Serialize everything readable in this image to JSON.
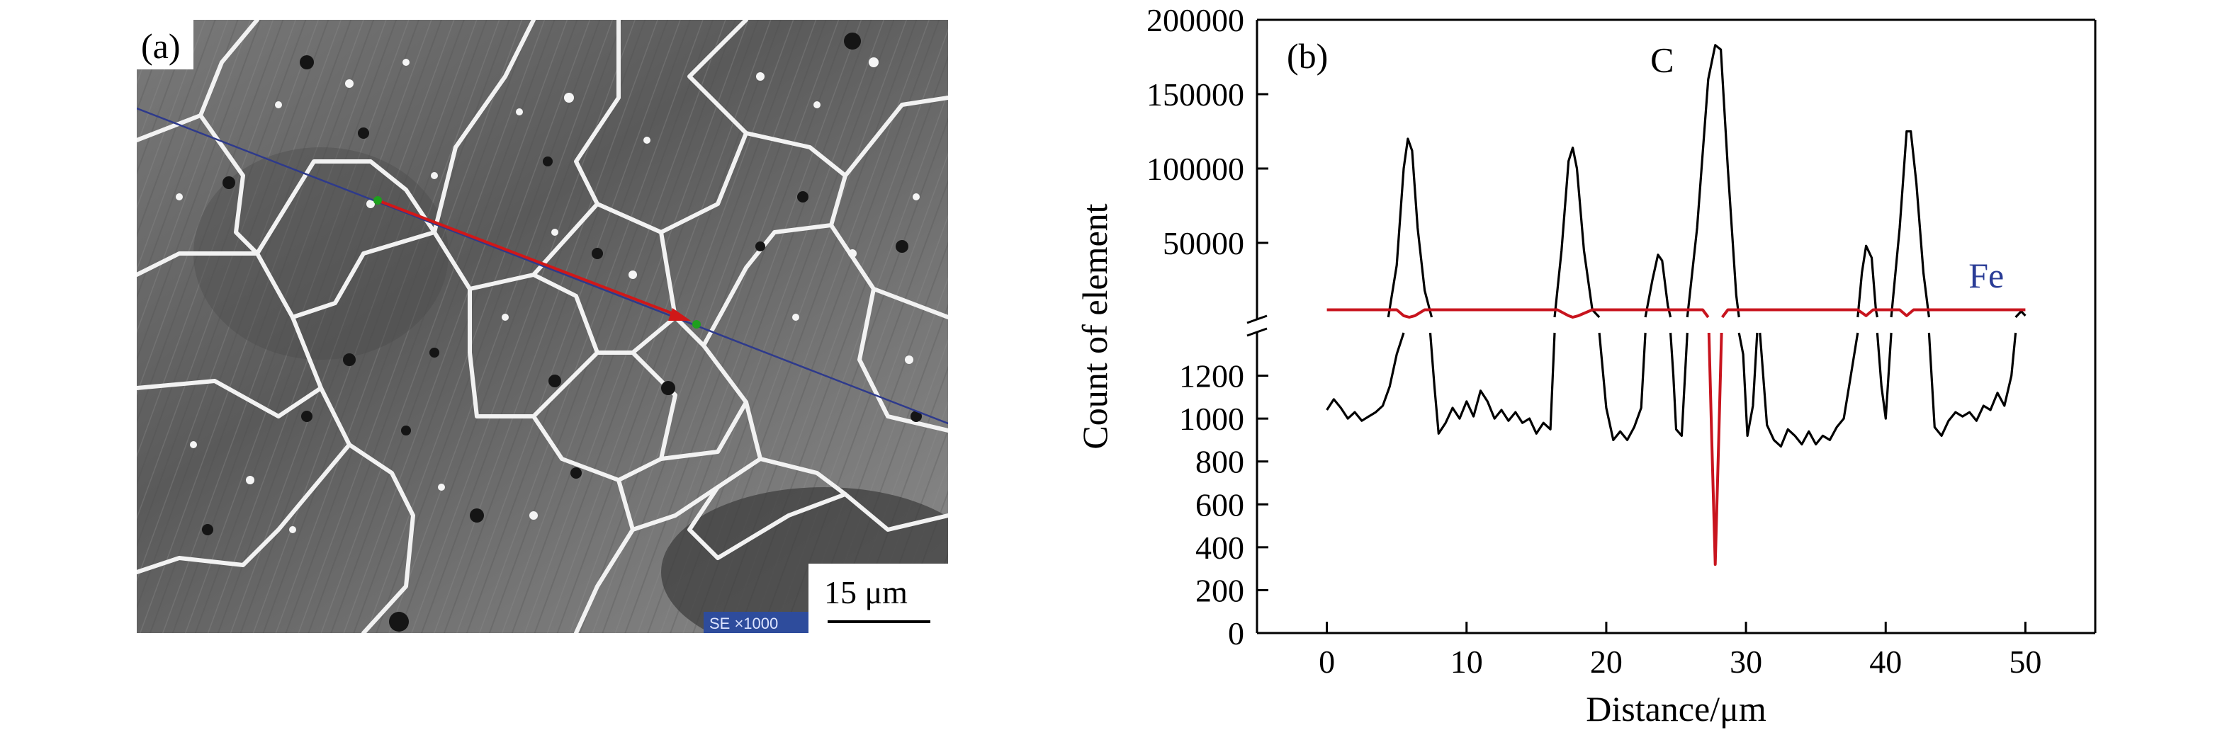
{
  "panel_a": {
    "label": "(a)",
    "scale_bar": "15 μm",
    "sem_info": "SE ×1000"
  },
  "chart_data": {
    "type": "line",
    "panel_label": "(b)",
    "xlabel": "Distance/μm",
    "ylabel": "Count of element",
    "xlim": [
      -5,
      55
    ],
    "x_ticks": [
      0,
      10,
      20,
      30,
      40,
      50
    ],
    "y_axis_broken": true,
    "y_upper": {
      "ylim": [
        0,
        200000
      ],
      "tick_values": [
        50000,
        100000,
        150000,
        200000
      ]
    },
    "y_lower": {
      "ylim": [
        0,
        1400
      ],
      "tick_values": [
        0,
        200,
        400,
        600,
        800,
        1000,
        1200
      ]
    },
    "series": [
      {
        "name": "C",
        "color": "#000000",
        "lower": [
          [
            0,
            1040
          ],
          [
            0.5,
            1090
          ],
          [
            1,
            1050
          ],
          [
            1.5,
            1000
          ],
          [
            2,
            1030
          ],
          [
            2.5,
            990
          ],
          [
            3,
            1010
          ],
          [
            3.5,
            1030
          ],
          [
            4,
            1060
          ],
          [
            4.5,
            1150
          ],
          [
            5,
            1300
          ],
          [
            5.5,
            1400
          ]
        ],
        "upper": [
          [
            4.4,
            0
          ],
          [
            5,
            35000
          ],
          [
            5.5,
            100000
          ],
          [
            5.8,
            120000
          ],
          [
            6.1,
            112000
          ],
          [
            6.5,
            60000
          ],
          [
            7,
            18000
          ],
          [
            7.5,
            0
          ]
        ],
        "lower_2": [
          [
            7.4,
            1400
          ],
          [
            7.7,
            1150
          ],
          [
            8,
            930
          ],
          [
            8.5,
            980
          ],
          [
            9,
            1050
          ],
          [
            9.5,
            1000
          ],
          [
            10,
            1080
          ],
          [
            10.5,
            1010
          ],
          [
            11,
            1130
          ],
          [
            11.5,
            1080
          ],
          [
            12,
            1000
          ],
          [
            12.5,
            1040
          ],
          [
            13,
            990
          ],
          [
            13.5,
            1030
          ],
          [
            14,
            980
          ],
          [
            14.5,
            1000
          ],
          [
            15,
            930
          ],
          [
            15.5,
            980
          ],
          [
            16,
            950
          ],
          [
            16.3,
            1400
          ]
        ],
        "upper_2": [
          [
            16.3,
            0
          ],
          [
            16.8,
            45000
          ],
          [
            17.3,
            105000
          ],
          [
            17.6,
            114000
          ],
          [
            17.9,
            100000
          ],
          [
            18.4,
            45000
          ],
          [
            19,
            5000
          ],
          [
            19.5,
            0
          ]
        ],
        "lower_3": [
          [
            19.5,
            1400
          ],
          [
            20,
            1050
          ],
          [
            20.5,
            900
          ],
          [
            21,
            940
          ],
          [
            21.5,
            900
          ],
          [
            22,
            960
          ],
          [
            22.5,
            1050
          ],
          [
            22.8,
            1400
          ]
        ],
        "upper_3": [
          [
            22.8,
            0
          ],
          [
            23.3,
            25000
          ],
          [
            23.7,
            42000
          ],
          [
            24,
            38000
          ],
          [
            24.4,
            8000
          ],
          [
            24.6,
            0
          ]
        ],
        "lower_4": [
          [
            24.6,
            1400
          ],
          [
            24.8,
            1200
          ],
          [
            25,
            950
          ],
          [
            25.4,
            920
          ],
          [
            25.8,
            1400
          ]
        ],
        "upper_4": [
          [
            25.8,
            0
          ],
          [
            26.5,
            60000
          ],
          [
            27.3,
            160000
          ],
          [
            27.8,
            183000
          ],
          [
            28.2,
            180000
          ],
          [
            28.7,
            100000
          ],
          [
            29.3,
            15000
          ],
          [
            29.5,
            0
          ]
        ],
        "lower_5": [
          [
            29.5,
            1400
          ],
          [
            29.8,
            1300
          ],
          [
            30.1,
            920
          ],
          [
            30.5,
            1060
          ],
          [
            30.8,
            1400
          ]
        ],
        "lower_6": [
          [
            31,
            1400
          ],
          [
            31.5,
            970
          ],
          [
            32,
            900
          ],
          [
            32.5,
            870
          ],
          [
            33,
            950
          ],
          [
            33.5,
            920
          ],
          [
            34,
            880
          ],
          [
            34.5,
            940
          ],
          [
            35,
            880
          ],
          [
            35.5,
            920
          ],
          [
            36,
            900
          ],
          [
            36.5,
            960
          ],
          [
            37,
            1000
          ],
          [
            37.5,
            1200
          ],
          [
            38,
            1400
          ]
        ],
        "upper_5": [
          [
            38,
            0
          ],
          [
            38.3,
            30000
          ],
          [
            38.6,
            48000
          ],
          [
            39,
            40000
          ],
          [
            39.3,
            5000
          ],
          [
            39.4,
            0
          ]
        ],
        "lower_7": [
          [
            39.4,
            1400
          ],
          [
            39.7,
            1150
          ],
          [
            40,
            1000
          ],
          [
            40.4,
            1400
          ]
        ],
        "upper_6": [
          [
            40.4,
            0
          ],
          [
            41,
            60000
          ],
          [
            41.5,
            125000
          ],
          [
            41.8,
            125000
          ],
          [
            42.2,
            90000
          ],
          [
            42.7,
            30000
          ],
          [
            43.1,
            0
          ]
        ],
        "lower_8": [
          [
            43.1,
            1400
          ],
          [
            43.5,
            960
          ],
          [
            44,
            920
          ],
          [
            44.5,
            990
          ],
          [
            45,
            1030
          ],
          [
            45.5,
            1010
          ],
          [
            46,
            1030
          ],
          [
            46.5,
            990
          ],
          [
            47,
            1060
          ],
          [
            47.5,
            1040
          ],
          [
            48,
            1120
          ],
          [
            48.5,
            1060
          ],
          [
            49,
            1200
          ],
          [
            49.3,
            1400
          ]
        ],
        "upper_7": [
          [
            49.3,
            0
          ],
          [
            49.7,
            4000
          ],
          [
            50,
            1000
          ]
        ]
      },
      {
        "name": "Fe",
        "color": "#c8141e",
        "upper": [
          [
            0,
            5000
          ],
          [
            5,
            5000
          ],
          [
            5.5,
            1000
          ],
          [
            5.9,
            0
          ],
          [
            6.3,
            1000
          ],
          [
            7,
            5000
          ],
          [
            16.5,
            5000
          ],
          [
            17.3,
            1000
          ],
          [
            17.6,
            0
          ],
          [
            18,
            1000
          ],
          [
            19,
            5000
          ],
          [
            23,
            5000
          ],
          [
            26.9,
            5000
          ],
          [
            27.3,
            0
          ]
        ],
        "lower": [
          [
            27.35,
            1400
          ],
          [
            27.55,
            900
          ],
          [
            27.8,
            320
          ],
          [
            28.05,
            900
          ],
          [
            28.25,
            1400
          ]
        ],
        "upper_2": [
          [
            28.3,
            0
          ],
          [
            28.7,
            5000
          ],
          [
            38,
            5000
          ],
          [
            38.6,
            1000
          ],
          [
            39.1,
            5000
          ],
          [
            41,
            5000
          ],
          [
            41.5,
            1000
          ],
          [
            42,
            5000
          ],
          [
            50,
            5000
          ]
        ]
      }
    ],
    "annotations": [
      {
        "text": "C",
        "x": 24,
        "y": 165000,
        "color": "#000000"
      },
      {
        "text": "Fe",
        "x": 47.2,
        "y": 20000,
        "color": "#2a3c96"
      }
    ]
  }
}
